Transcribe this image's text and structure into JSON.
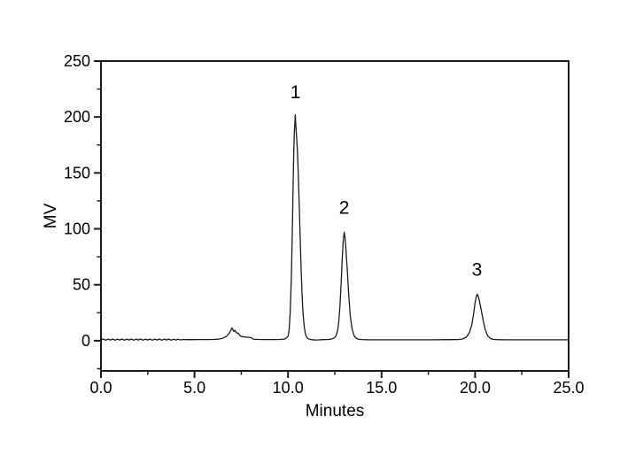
{
  "figure": {
    "background": "#ffffff",
    "frame_color": "#1a1a1a",
    "trace_color": "#1a1a1a",
    "text_color": "#000000"
  },
  "chart_data": {
    "type": "line",
    "title": "",
    "xlabel": "Minutes",
    "ylabel": "MV",
    "xlim": [
      0,
      25
    ],
    "ylim": [
      -27,
      250
    ],
    "grid": false,
    "legend": null,
    "x_major_ticks": [
      0,
      5,
      10,
      15,
      20,
      25
    ],
    "x_major_tick_labels": [
      "0.0",
      "5.0",
      "10.0",
      "15.0",
      "20.0",
      "25.0"
    ],
    "x_minor_ticks": [
      2.5,
      7.5,
      12.5,
      17.5,
      22.5
    ],
    "y_major_ticks": [
      0,
      50,
      100,
      150,
      200,
      250
    ],
    "y_major_tick_labels": [
      "0",
      "50",
      "100",
      "150",
      "200",
      "250"
    ],
    "y_minor_ticks": [
      -25,
      25,
      75,
      125,
      175,
      225
    ],
    "peaks": [
      {
        "label": "1",
        "retention_time_min": 10.4,
        "height_mv": 200
      },
      {
        "label": "2",
        "retention_time_min": 13.0,
        "height_mv": 97
      },
      {
        "label": "3",
        "retention_time_min": 20.1,
        "height_mv": 41.5
      }
    ],
    "minor_feature": {
      "retention_time_min": 7.0,
      "height_mv": 11.5,
      "label": ""
    },
    "trace": [
      [
        0.0,
        0.8
      ],
      [
        0.12,
        1.5
      ],
      [
        0.25,
        0.5
      ],
      [
        0.38,
        1.4
      ],
      [
        0.5,
        0.6
      ],
      [
        0.62,
        1.5
      ],
      [
        0.75,
        0.5
      ],
      [
        0.88,
        1.4
      ],
      [
        1.0,
        0.6
      ],
      [
        1.12,
        1.5
      ],
      [
        1.25,
        0.5
      ],
      [
        1.38,
        1.4
      ],
      [
        1.5,
        0.6
      ],
      [
        1.62,
        1.5
      ],
      [
        1.75,
        0.5
      ],
      [
        1.88,
        1.4
      ],
      [
        2.0,
        0.6
      ],
      [
        2.12,
        1.5
      ],
      [
        2.25,
        0.5
      ],
      [
        2.38,
        1.4
      ],
      [
        2.5,
        0.6
      ],
      [
        2.62,
        1.5
      ],
      [
        2.75,
        0.5
      ],
      [
        2.88,
        1.4
      ],
      [
        3.0,
        0.6
      ],
      [
        3.12,
        1.5
      ],
      [
        3.25,
        0.5
      ],
      [
        3.38,
        1.4
      ],
      [
        3.5,
        0.6
      ],
      [
        3.62,
        1.5
      ],
      [
        3.75,
        0.5
      ],
      [
        3.88,
        1.3
      ],
      [
        4.0,
        0.6
      ],
      [
        4.12,
        1.3
      ],
      [
        4.25,
        0.7
      ],
      [
        4.4,
        1.1
      ],
      [
        4.6,
        0.9
      ],
      [
        4.9,
        0.9
      ],
      [
        5.2,
        1.0
      ],
      [
        5.6,
        1.0
      ],
      [
        6.0,
        1.1
      ],
      [
        6.3,
        1.4
      ],
      [
        6.5,
        2.2
      ],
      [
        6.7,
        3.8
      ],
      [
        6.85,
        6.5
      ],
      [
        6.95,
        9.5
      ],
      [
        7.0,
        11.5
      ],
      [
        7.05,
        10.0
      ],
      [
        7.1,
        8.3
      ],
      [
        7.16,
        9.3
      ],
      [
        7.25,
        7.0
      ],
      [
        7.35,
        6.6
      ],
      [
        7.45,
        4.2
      ],
      [
        7.55,
        3.6
      ],
      [
        7.75,
        3.2
      ],
      [
        7.95,
        3.0
      ],
      [
        8.05,
        2.6
      ],
      [
        8.12,
        1.4
      ],
      [
        8.4,
        1.1
      ],
      [
        8.8,
        1.0
      ],
      [
        9.2,
        1.0
      ],
      [
        9.6,
        1.1
      ],
      [
        9.85,
        1.6
      ],
      [
        10.0,
        4.0
      ],
      [
        10.06,
        10
      ],
      [
        10.12,
        26
      ],
      [
        10.18,
        58
      ],
      [
        10.23,
        100
      ],
      [
        10.27,
        138
      ],
      [
        10.31,
        170
      ],
      [
        10.34,
        188
      ],
      [
        10.37,
        196
      ],
      [
        10.39,
        202
      ],
      [
        10.41,
        194
      ],
      [
        10.45,
        184
      ],
      [
        10.5,
        170
      ],
      [
        10.55,
        148
      ],
      [
        10.6,
        120
      ],
      [
        10.65,
        92
      ],
      [
        10.7,
        64
      ],
      [
        10.75,
        42
      ],
      [
        10.8,
        25
      ],
      [
        10.86,
        13
      ],
      [
        10.93,
        6
      ],
      [
        11.0,
        3.0
      ],
      [
        11.1,
        1.6
      ],
      [
        11.25,
        0.9
      ],
      [
        11.45,
        0.6
      ],
      [
        11.65,
        0.7
      ],
      [
        11.85,
        0.9
      ],
      [
        12.05,
        1.0
      ],
      [
        12.25,
        1.2
      ],
      [
        12.45,
        2.2
      ],
      [
        12.55,
        4.0
      ],
      [
        12.65,
        9.0
      ],
      [
        12.72,
        18
      ],
      [
        12.78,
        32
      ],
      [
        12.84,
        52
      ],
      [
        12.9,
        74
      ],
      [
        12.95,
        89
      ],
      [
        13.0,
        97
      ],
      [
        13.05,
        92
      ],
      [
        13.1,
        80
      ],
      [
        13.17,
        62
      ],
      [
        13.25,
        40
      ],
      [
        13.33,
        22
      ],
      [
        13.42,
        11
      ],
      [
        13.52,
        5
      ],
      [
        13.62,
        2.4
      ],
      [
        13.75,
        1.4
      ],
      [
        13.95,
        1.0
      ],
      [
        14.3,
        0.8
      ],
      [
        14.8,
        0.8
      ],
      [
        15.5,
        0.8
      ],
      [
        16.2,
        0.8
      ],
      [
        17.0,
        0.8
      ],
      [
        17.8,
        0.8
      ],
      [
        18.6,
        0.9
      ],
      [
        19.1,
        1.0
      ],
      [
        19.35,
        1.6
      ],
      [
        19.55,
        3.5
      ],
      [
        19.7,
        7.5
      ],
      [
        19.82,
        14
      ],
      [
        19.92,
        24
      ],
      [
        20.0,
        34
      ],
      [
        20.07,
        40
      ],
      [
        20.12,
        41.5
      ],
      [
        20.2,
        38
      ],
      [
        20.3,
        30
      ],
      [
        20.42,
        19
      ],
      [
        20.54,
        10
      ],
      [
        20.66,
        4.8
      ],
      [
        20.8,
        2.2
      ],
      [
        20.95,
        1.2
      ],
      [
        21.2,
        0.9
      ],
      [
        21.7,
        0.8
      ],
      [
        22.3,
        0.8
      ],
      [
        23.0,
        0.8
      ],
      [
        23.8,
        0.8
      ],
      [
        24.5,
        0.8
      ],
      [
        25.0,
        0.8
      ]
    ]
  }
}
